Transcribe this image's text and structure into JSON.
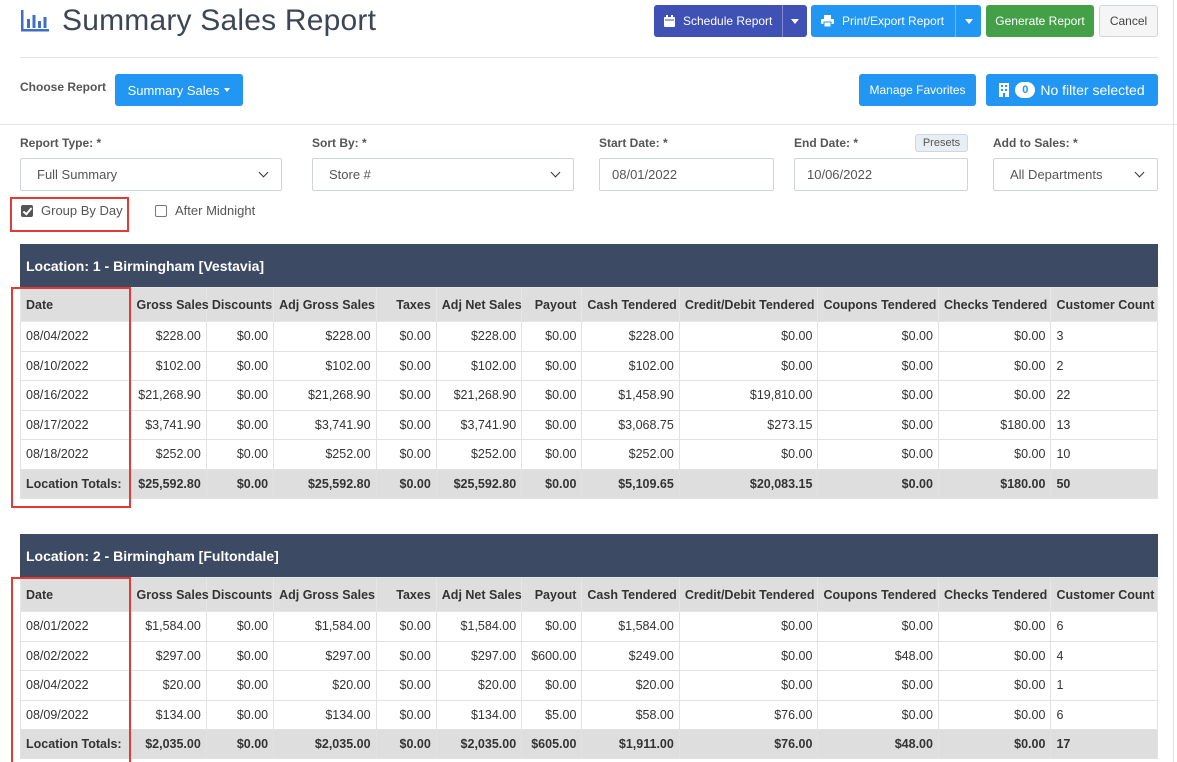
{
  "header": {
    "title": "Summary Sales Report",
    "schedule_label": "Schedule Report",
    "print_label": "Print/Export Report",
    "generate_label": "Generate Report",
    "cancel_label": "Cancel"
  },
  "choose": {
    "label": "Choose Report",
    "report_button": "Summary Sales",
    "favorites": "Manage Favorites",
    "filter_count": "0",
    "filter_label": "No filter selected"
  },
  "form": {
    "report_type_label": "Report Type: *",
    "report_type_value": "Full Summary",
    "sort_by_label": "Sort By: *",
    "sort_by_value": "Store #",
    "start_date_label": "Start Date: *",
    "start_date_value": "08/01/2022",
    "end_date_label": "End Date: *",
    "end_date_value": "10/06/2022",
    "presets_label": "Presets",
    "add_to_sales_label": "Add to Sales: *",
    "add_to_sales_value": "All Departments",
    "group_by_day_label": "Group By Day",
    "group_by_day_checked": true,
    "after_midnight_label": "After Midnight",
    "after_midnight_checked": false
  },
  "columns": [
    "Date",
    "Gross Sales",
    "Discounts",
    "Adj Gross Sales",
    "Taxes",
    "Adj Net Sales",
    "Payout",
    "Cash Tendered",
    "Credit/Debit Tendered",
    "Coupons Tendered",
    "Checks Tendered",
    "Customer Count"
  ],
  "locations": [
    {
      "title": "Location: 1 - Birmingham [Vestavia]",
      "rows": [
        [
          "08/04/2022",
          "$228.00",
          "$0.00",
          "$228.00",
          "$0.00",
          "$228.00",
          "$0.00",
          "$228.00",
          "$0.00",
          "$0.00",
          "$0.00",
          "3"
        ],
        [
          "08/10/2022",
          "$102.00",
          "$0.00",
          "$102.00",
          "$0.00",
          "$102.00",
          "$0.00",
          "$102.00",
          "$0.00",
          "$0.00",
          "$0.00",
          "2"
        ],
        [
          "08/16/2022",
          "$21,268.90",
          "$0.00",
          "$21,268.90",
          "$0.00",
          "$21,268.90",
          "$0.00",
          "$1,458.90",
          "$19,810.00",
          "$0.00",
          "$0.00",
          "22"
        ],
        [
          "08/17/2022",
          "$3,741.90",
          "$0.00",
          "$3,741.90",
          "$0.00",
          "$3,741.90",
          "$0.00",
          "$3,068.75",
          "$273.15",
          "$0.00",
          "$180.00",
          "13"
        ],
        [
          "08/18/2022",
          "$252.00",
          "$0.00",
          "$252.00",
          "$0.00",
          "$252.00",
          "$0.00",
          "$252.00",
          "$0.00",
          "$0.00",
          "$0.00",
          "10"
        ]
      ],
      "totals": [
        "Location Totals:",
        "$25,592.80",
        "$0.00",
        "$25,592.80",
        "$0.00",
        "$25,592.80",
        "$0.00",
        "$5,109.65",
        "$20,083.15",
        "$0.00",
        "$180.00",
        "50"
      ]
    },
    {
      "title": "Location: 2 - Birmingham [Fultondale]",
      "rows": [
        [
          "08/01/2022",
          "$1,584.00",
          "$0.00",
          "$1,584.00",
          "$0.00",
          "$1,584.00",
          "$0.00",
          "$1,584.00",
          "$0.00",
          "$0.00",
          "$0.00",
          "6"
        ],
        [
          "08/02/2022",
          "$297.00",
          "$0.00",
          "$297.00",
          "$0.00",
          "$297.00",
          "$600.00",
          "$249.00",
          "$0.00",
          "$48.00",
          "$0.00",
          "4"
        ],
        [
          "08/04/2022",
          "$20.00",
          "$0.00",
          "$20.00",
          "$0.00",
          "$20.00",
          "$0.00",
          "$20.00",
          "$0.00",
          "$0.00",
          "$0.00",
          "1"
        ],
        [
          "08/09/2022",
          "$134.00",
          "$0.00",
          "$134.00",
          "$0.00",
          "$134.00",
          "$5.00",
          "$58.00",
          "$76.00",
          "$0.00",
          "$0.00",
          "6"
        ]
      ],
      "totals": [
        "Location Totals:",
        "$2,035.00",
        "$0.00",
        "$2,035.00",
        "$0.00",
        "$2,035.00",
        "$605.00",
        "$1,911.00",
        "$76.00",
        "$48.00",
        "$0.00",
        "17"
      ]
    }
  ],
  "colors": {
    "title": "#3d4656",
    "schedule_button": "#3f51b5",
    "primary_button": "#2196f3",
    "generate_button": "#43a047",
    "location_header": "#3d4a63",
    "highlight": "#e53935"
  },
  "icons": {
    "title": "bar-chart-icon",
    "schedule": "calendar-icon",
    "print": "printer-icon",
    "filter": "building-icon"
  }
}
